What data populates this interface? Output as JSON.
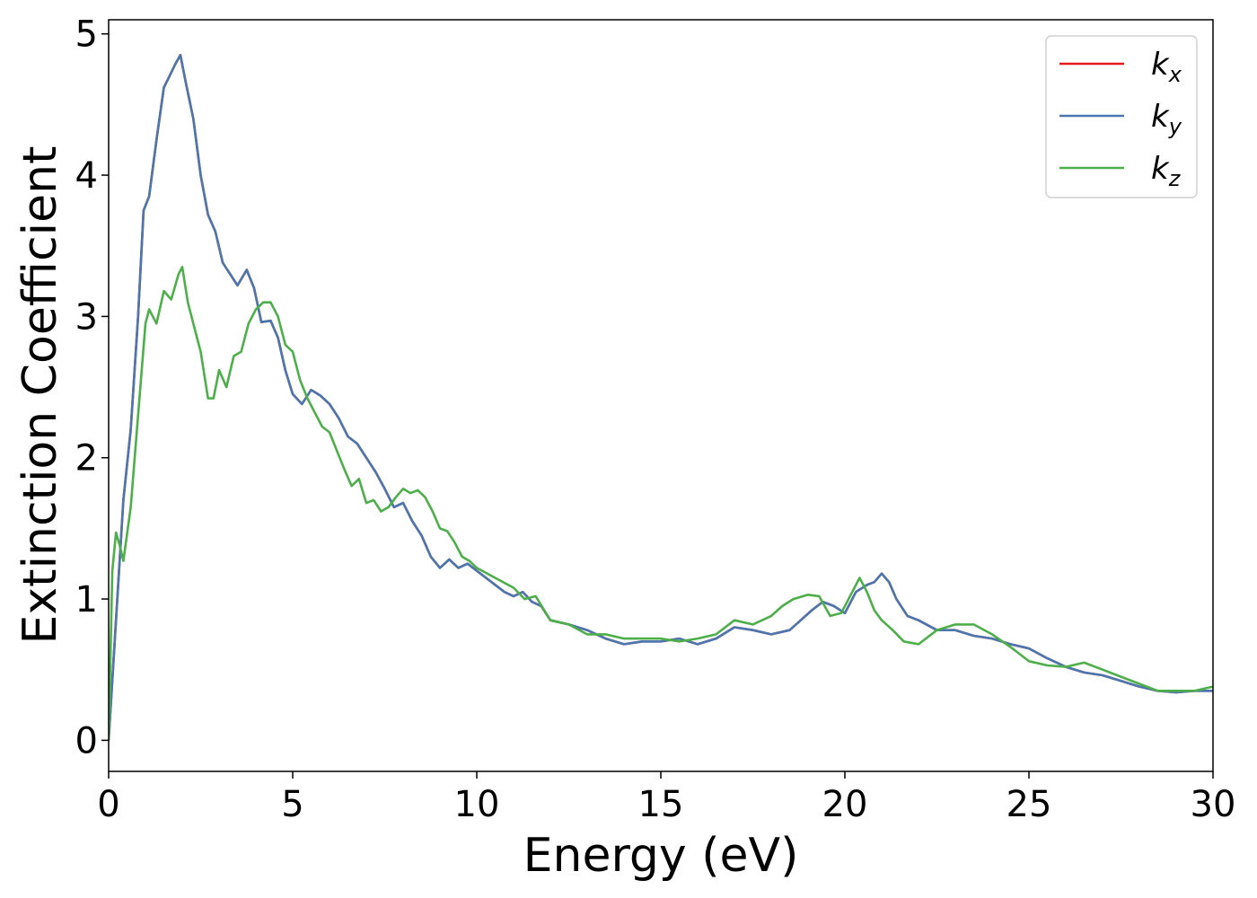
{
  "chart_data": {
    "type": "line",
    "xlabel": "Energy (eV)",
    "ylabel": "Extinction Coefficient",
    "xlim": [
      0,
      30
    ],
    "ylim": [
      -0.22,
      5.1
    ],
    "xticks": [
      0,
      5,
      10,
      15,
      20,
      25,
      30
    ],
    "yticks": [
      0,
      1,
      2,
      3,
      4,
      5
    ],
    "grid": false,
    "legend_position": "top-right",
    "series": [
      {
        "name": "k_x",
        "label_base": "k",
        "label_sub": "x",
        "color": "#e41a1c",
        "x": [
          0,
          0.2,
          0.4,
          0.6,
          0.8,
          0.95,
          1.1,
          1.3,
          1.5,
          1.65,
          1.8,
          1.95,
          2.1,
          2.3,
          2.5,
          2.7,
          2.9,
          3.1,
          3.3,
          3.5,
          3.75,
          3.95,
          4.15,
          4.4,
          4.6,
          4.8,
          5.0,
          5.25,
          5.5,
          5.75,
          6.0,
          6.25,
          6.5,
          6.75,
          7.0,
          7.25,
          7.5,
          7.75,
          8.0,
          8.25,
          8.5,
          8.75,
          9.0,
          9.25,
          9.5,
          9.75,
          10.0,
          10.25,
          10.5,
          10.75,
          11.0,
          11.25,
          11.5,
          11.75,
          12.0,
          12.5,
          13.0,
          13.5,
          14.0,
          14.5,
          15.0,
          15.5,
          16.0,
          16.5,
          17.0,
          17.5,
          18.0,
          18.5,
          18.8,
          19.1,
          19.4,
          19.7,
          20.0,
          20.3,
          20.6,
          20.8,
          21.0,
          21.2,
          21.4,
          21.7,
          22.0,
          22.5,
          23.0,
          23.5,
          24.0,
          24.5,
          25.0,
          25.5,
          26.0,
          26.5,
          27.0,
          27.5,
          28.0,
          28.5,
          29.0,
          29.5,
          30.0
        ],
        "y": [
          0.0,
          0.85,
          1.7,
          2.2,
          3.0,
          3.75,
          3.85,
          4.25,
          4.62,
          4.7,
          4.78,
          4.85,
          4.65,
          4.4,
          4.0,
          3.72,
          3.6,
          3.38,
          3.3,
          3.22,
          3.33,
          3.2,
          2.96,
          2.97,
          2.85,
          2.62,
          2.45,
          2.38,
          2.48,
          2.44,
          2.38,
          2.28,
          2.15,
          2.1,
          2.0,
          1.9,
          1.78,
          1.65,
          1.68,
          1.55,
          1.45,
          1.3,
          1.22,
          1.28,
          1.22,
          1.25,
          1.2,
          1.15,
          1.1,
          1.05,
          1.02,
          1.05,
          0.98,
          0.95,
          0.85,
          0.82,
          0.78,
          0.72,
          0.68,
          0.7,
          0.7,
          0.72,
          0.68,
          0.72,
          0.8,
          0.78,
          0.75,
          0.78,
          0.85,
          0.92,
          0.98,
          0.95,
          0.9,
          1.05,
          1.1,
          1.12,
          1.18,
          1.12,
          1.0,
          0.88,
          0.85,
          0.78,
          0.78,
          0.74,
          0.72,
          0.68,
          0.65,
          0.58,
          0.52,
          0.48,
          0.46,
          0.42,
          0.38,
          0.35,
          0.34,
          0.35,
          0.35
        ]
      },
      {
        "name": "k_y",
        "label_base": "k",
        "label_sub": "y",
        "color": "#4a77b0",
        "x": [
          0,
          0.2,
          0.4,
          0.6,
          0.8,
          0.95,
          1.1,
          1.3,
          1.5,
          1.65,
          1.8,
          1.95,
          2.1,
          2.3,
          2.5,
          2.7,
          2.9,
          3.1,
          3.3,
          3.5,
          3.75,
          3.95,
          4.15,
          4.4,
          4.6,
          4.8,
          5.0,
          5.25,
          5.5,
          5.75,
          6.0,
          6.25,
          6.5,
          6.75,
          7.0,
          7.25,
          7.5,
          7.75,
          8.0,
          8.25,
          8.5,
          8.75,
          9.0,
          9.25,
          9.5,
          9.75,
          10.0,
          10.25,
          10.5,
          10.75,
          11.0,
          11.25,
          11.5,
          11.75,
          12.0,
          12.5,
          13.0,
          13.5,
          14.0,
          14.5,
          15.0,
          15.5,
          16.0,
          16.5,
          17.0,
          17.5,
          18.0,
          18.5,
          18.8,
          19.1,
          19.4,
          19.7,
          20.0,
          20.3,
          20.6,
          20.8,
          21.0,
          21.2,
          21.4,
          21.7,
          22.0,
          22.5,
          23.0,
          23.5,
          24.0,
          24.5,
          25.0,
          25.5,
          26.0,
          26.5,
          27.0,
          27.5,
          28.0,
          28.5,
          29.0,
          29.5,
          30.0
        ],
        "y": [
          0.0,
          0.85,
          1.7,
          2.2,
          3.0,
          3.75,
          3.85,
          4.25,
          4.62,
          4.7,
          4.78,
          4.85,
          4.65,
          4.4,
          4.0,
          3.72,
          3.6,
          3.38,
          3.3,
          3.22,
          3.33,
          3.2,
          2.96,
          2.97,
          2.85,
          2.62,
          2.45,
          2.38,
          2.48,
          2.44,
          2.38,
          2.28,
          2.15,
          2.1,
          2.0,
          1.9,
          1.78,
          1.65,
          1.68,
          1.55,
          1.45,
          1.3,
          1.22,
          1.28,
          1.22,
          1.25,
          1.2,
          1.15,
          1.1,
          1.05,
          1.02,
          1.05,
          0.98,
          0.95,
          0.85,
          0.82,
          0.78,
          0.72,
          0.68,
          0.7,
          0.7,
          0.72,
          0.68,
          0.72,
          0.8,
          0.78,
          0.75,
          0.78,
          0.85,
          0.92,
          0.98,
          0.95,
          0.9,
          1.05,
          1.1,
          1.12,
          1.18,
          1.12,
          1.0,
          0.88,
          0.85,
          0.78,
          0.78,
          0.74,
          0.72,
          0.68,
          0.65,
          0.58,
          0.52,
          0.48,
          0.46,
          0.42,
          0.38,
          0.35,
          0.34,
          0.35,
          0.35
        ]
      },
      {
        "name": "k_z",
        "label_base": "k",
        "label_sub": "z",
        "color": "#4daf4a",
        "x": [
          0,
          0.1,
          0.2,
          0.3,
          0.4,
          0.6,
          0.8,
          1.0,
          1.1,
          1.3,
          1.5,
          1.7,
          1.9,
          2.0,
          2.15,
          2.3,
          2.5,
          2.7,
          2.85,
          3.0,
          3.2,
          3.4,
          3.6,
          3.8,
          4.0,
          4.2,
          4.4,
          4.6,
          4.8,
          5.0,
          5.2,
          5.4,
          5.6,
          5.8,
          6.0,
          6.2,
          6.4,
          6.6,
          6.8,
          7.0,
          7.2,
          7.4,
          7.6,
          7.8,
          8.0,
          8.2,
          8.4,
          8.6,
          8.8,
          9.0,
          9.2,
          9.4,
          9.6,
          9.8,
          10.0,
          10.5,
          11.0,
          11.3,
          11.6,
          12.0,
          12.5,
          13.0,
          13.5,
          14.0,
          14.5,
          15.0,
          15.5,
          16.0,
          16.5,
          17.0,
          17.5,
          18.0,
          18.3,
          18.6,
          19.0,
          19.3,
          19.6,
          19.9,
          20.2,
          20.4,
          20.6,
          20.8,
          21.0,
          21.3,
          21.6,
          22.0,
          22.5,
          23.0,
          23.5,
          24.0,
          24.5,
          25.0,
          25.5,
          26.0,
          26.5,
          27.0,
          27.5,
          28.0,
          28.5,
          29.0,
          29.5,
          30.0
        ],
        "y": [
          0.0,
          1.2,
          1.47,
          1.38,
          1.27,
          1.65,
          2.3,
          2.95,
          3.05,
          2.95,
          3.18,
          3.12,
          3.3,
          3.35,
          3.1,
          2.95,
          2.75,
          2.42,
          2.42,
          2.62,
          2.5,
          2.72,
          2.75,
          2.95,
          3.05,
          3.1,
          3.1,
          3.0,
          2.8,
          2.75,
          2.55,
          2.42,
          2.32,
          2.22,
          2.18,
          2.05,
          1.92,
          1.8,
          1.85,
          1.68,
          1.7,
          1.62,
          1.65,
          1.72,
          1.78,
          1.75,
          1.77,
          1.72,
          1.62,
          1.5,
          1.48,
          1.4,
          1.3,
          1.27,
          1.22,
          1.15,
          1.08,
          1.0,
          1.02,
          0.85,
          0.82,
          0.75,
          0.75,
          0.72,
          0.72,
          0.72,
          0.7,
          0.72,
          0.75,
          0.85,
          0.82,
          0.88,
          0.95,
          1.0,
          1.03,
          1.02,
          0.88,
          0.9,
          1.05,
          1.15,
          1.05,
          0.92,
          0.85,
          0.78,
          0.7,
          0.68,
          0.78,
          0.82,
          0.82,
          0.75,
          0.66,
          0.56,
          0.53,
          0.52,
          0.55,
          0.5,
          0.45,
          0.4,
          0.35,
          0.35,
          0.35,
          0.38
        ]
      }
    ]
  }
}
